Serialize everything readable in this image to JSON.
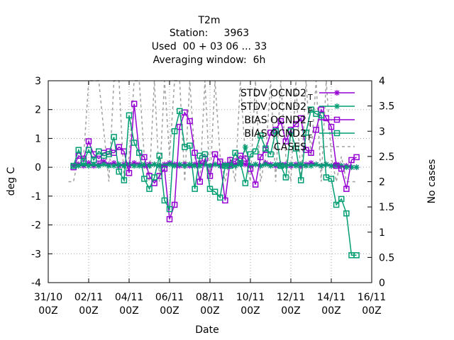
{
  "title_lines": [
    "T2m",
    "Station:     3963",
    "Used  00 + 03 06 ... 33",
    "Averaging window:  6h"
  ],
  "chart_data": {
    "type": "line",
    "xlabel": "Date",
    "ylabel": "deg C",
    "y2label": "No cases",
    "ylim": [
      -4,
      3
    ],
    "y2lim": [
      0,
      4
    ],
    "yticks": [
      -4,
      -3,
      -2,
      -1,
      0,
      1,
      2,
      3
    ],
    "y2ticks": [
      0,
      0.5,
      1,
      1.5,
      2,
      2.5,
      3,
      3.5,
      4
    ],
    "xlim": [
      0,
      16
    ],
    "xticks": [
      {
        "x": 0,
        "top": "31/10",
        "bottom": "00Z"
      },
      {
        "x": 2,
        "top": "02/11",
        "bottom": "00Z"
      },
      {
        "x": 4,
        "top": "04/11",
        "bottom": "00Z"
      },
      {
        "x": 6,
        "top": "06/11",
        "bottom": "00Z"
      },
      {
        "x": 8,
        "top": "08/11",
        "bottom": "00Z"
      },
      {
        "x": 10,
        "top": "10/11",
        "bottom": "00Z"
      },
      {
        "x": 12,
        "top": "12/11",
        "bottom": "00Z"
      },
      {
        "x": 14,
        "top": "14/11",
        "bottom": "00Z"
      },
      {
        "x": 16,
        "top": "16/11",
        "bottom": "00Z"
      }
    ],
    "grid": true,
    "legend_position": "top-right",
    "series": [
      {
        "name": "STDV OCND2_T",
        "legend_main": "STDV OCND2",
        "legend_sub": "T",
        "color": "#9400d3",
        "marker": "star",
        "axis": "y1",
        "x": [
          1.25,
          1.5,
          1.75,
          2,
          2.25,
          2.5,
          2.75,
          3,
          3.25,
          3.5,
          3.75,
          4,
          4.25,
          4.5,
          4.75,
          5,
          5.25,
          5.5,
          5.75,
          6,
          6.25,
          6.5,
          6.75,
          7,
          7.25,
          7.5,
          7.75,
          8,
          8.25,
          8.5,
          8.75,
          9,
          9.25,
          9.5,
          9.75,
          10,
          10.25,
          10.5,
          10.75,
          11,
          11.25,
          11.5,
          11.75,
          12,
          12.25,
          12.5,
          12.75,
          13,
          13.25,
          13.5,
          13.75,
          14,
          14.25,
          14.5,
          14.75,
          15,
          15.25
        ],
        "y": [
          0.05,
          0.1,
          0.05,
          0.15,
          0.05,
          0.1,
          0.2,
          0.1,
          0.15,
          0.05,
          0.1,
          0.05,
          0.15,
          0.1,
          0.05,
          0.1,
          0.1,
          0.05,
          0.1,
          0.15,
          0.1,
          0.05,
          0.1,
          0.05,
          0.1,
          0.15,
          0.1,
          0.05,
          0.1,
          0.05,
          0.1,
          0.05,
          0.1,
          0.15,
          0.1,
          0.05,
          0.1,
          0.05,
          0.15,
          0.1,
          0.05,
          0.1,
          0.1,
          0.05,
          0.1,
          0.05,
          0.1,
          0.15,
          0.1,
          0.05,
          0.1,
          0.05,
          0.1,
          0.05,
          0.05,
          0.0,
          0.0
        ]
      },
      {
        "name": "STDV OCND2_F",
        "legend_main": "STDV OCND2",
        "legend_sub": "F",
        "color": "#009e73",
        "marker": "star",
        "axis": "y1",
        "x": [
          1.25,
          1.5,
          1.75,
          2,
          2.25,
          2.5,
          2.75,
          3,
          3.25,
          3.5,
          3.75,
          4,
          4.25,
          4.5,
          4.75,
          5,
          5.25,
          5.5,
          5.75,
          6,
          6.25,
          6.5,
          6.75,
          7,
          7.25,
          7.5,
          7.75,
          8,
          8.25,
          8.5,
          8.75,
          9,
          9.25,
          9.5,
          9.75,
          10,
          10.25,
          10.5,
          10.75,
          11,
          11.25,
          11.5,
          11.75,
          12,
          12.25,
          12.5,
          12.75,
          13,
          13.25,
          13.5,
          13.75,
          14,
          14.25,
          14.5,
          14.75,
          15,
          15.25
        ],
        "y": [
          0.05,
          0.05,
          0.1,
          0.05,
          0.1,
          0.05,
          0.1,
          0.05,
          0.05,
          0.1,
          0.05,
          0.1,
          0.05,
          0.05,
          0.1,
          0.05,
          0.1,
          0.05,
          0.05,
          0.1,
          0.05,
          0.1,
          0.05,
          0.1,
          0.05,
          0.05,
          0.1,
          0.05,
          0.1,
          0.05,
          0.05,
          0.1,
          0.05,
          0.1,
          0.7,
          0.05,
          0.1,
          0.05,
          0.1,
          0.05,
          0.1,
          0.05,
          0.05,
          0.1,
          0.05,
          0.1,
          0.05,
          0.05,
          0.1,
          0.05,
          0.1,
          0.05,
          0.05,
          0.05,
          0.0,
          0.0,
          0.0
        ]
      },
      {
        "name": "BIAS OCND2_T",
        "legend_main": "BIAS OCND2",
        "legend_sub": "T",
        "color": "#9400d3",
        "marker": "square",
        "axis": "y1",
        "x": [
          1.25,
          1.5,
          1.75,
          2,
          2.25,
          2.5,
          2.75,
          3,
          3.25,
          3.5,
          3.75,
          4,
          4.25,
          4.5,
          4.75,
          5,
          5.25,
          5.5,
          5.75,
          6,
          6.25,
          6.5,
          6.75,
          7,
          7.25,
          7.5,
          7.75,
          8,
          8.25,
          8.5,
          8.75,
          9,
          9.25,
          9.5,
          9.75,
          10,
          10.25,
          10.5,
          10.75,
          11,
          11.25,
          11.5,
          11.75,
          12,
          12.25,
          12.5,
          12.75,
          13,
          13.25,
          13.5,
          13.75,
          14,
          14.25,
          14.5,
          14.75,
          15,
          15.25
        ],
        "y": [
          0.0,
          0.4,
          0.3,
          0.9,
          0.45,
          0.3,
          0.5,
          0.55,
          0.5,
          0.7,
          0.55,
          -0.2,
          2.2,
          0.5,
          0.35,
          -0.3,
          -0.55,
          -0.3,
          -0.05,
          -1.8,
          -1.3,
          1.4,
          1.9,
          1.6,
          0.5,
          -0.5,
          0.3,
          -0.3,
          0.45,
          0.2,
          -1.15,
          0.25,
          0.2,
          0.4,
          0.3,
          -0.05,
          -0.6,
          0.35,
          0.6,
          1.2,
          1.3,
          1.6,
          0.9,
          1.3,
          1.5,
          1.7,
          0.6,
          0.5,
          1.3,
          2.0,
          1.7,
          1.4,
          0.05,
          -0.05,
          -0.75,
          0.25,
          0.35
        ]
      },
      {
        "name": "BIAS OCND2_F",
        "legend_main": "BIAS OCND2",
        "legend_sub": "F",
        "color": "#009e73",
        "marker": "square",
        "axis": "y1",
        "x": [
          1.25,
          1.5,
          1.75,
          2,
          2.25,
          2.5,
          2.75,
          3,
          3.25,
          3.5,
          3.75,
          4,
          4.25,
          4.5,
          4.75,
          5,
          5.25,
          5.5,
          5.75,
          6,
          6.25,
          6.5,
          6.75,
          7,
          7.25,
          7.5,
          7.75,
          8,
          8.25,
          8.5,
          8.75,
          9,
          9.25,
          9.5,
          9.75,
          10,
          10.25,
          10.5,
          10.75,
          11,
          11.25,
          11.5,
          11.75,
          12,
          12.25,
          12.5,
          12.75,
          13,
          13.25,
          13.5,
          13.75,
          14,
          14.25,
          14.5,
          14.75,
          15,
          15.25
        ],
        "y": [
          0.05,
          0.6,
          0.2,
          0.6,
          0.25,
          0.55,
          0.4,
          0.45,
          1.05,
          -0.15,
          -0.45,
          1.8,
          0.85,
          0.5,
          -0.4,
          -0.75,
          -0.35,
          0.4,
          -1.15,
          -1.45,
          1.25,
          1.95,
          0.7,
          0.75,
          -0.75,
          0.4,
          0.45,
          -0.75,
          -0.85,
          -1.05,
          0.05,
          0.05,
          0.5,
          0.15,
          -0.55,
          0.45,
          0.55,
          1.1,
          0.65,
          0.45,
          1.25,
          0.05,
          -0.35,
          1.25,
          0.65,
          -0.45,
          1.2,
          2.0,
          1.85,
          1.8,
          -0.35,
          -0.4,
          -1.3,
          -1.1,
          -1.6,
          -3.05,
          -3.05
        ]
      },
      {
        "name": "CASES",
        "legend_main": "CASES",
        "legend_sub": "",
        "color": "#a0a0a0",
        "marker": "none",
        "dashed": true,
        "axis": "y2",
        "x": [
          1.0,
          1.25,
          1.5,
          1.75,
          2.0,
          2.25,
          2.5,
          2.75,
          3.0,
          3.25,
          3.5,
          3.75,
          4.0,
          4.25,
          4.5,
          4.75,
          5.0,
          5.25,
          5.5,
          5.75,
          6.0,
          6.25,
          6.5,
          6.75,
          7.0,
          7.25,
          7.5,
          7.75,
          8.0,
          8.25,
          8.5,
          8.75,
          9.0,
          9.25,
          9.5,
          9.75,
          10.0,
          10.25,
          10.5,
          10.75,
          11.0,
          11.25,
          11.5,
          11.75,
          12.0,
          12.25,
          12.5,
          12.75,
          13.0,
          13.25,
          13.5,
          13.75,
          14.0,
          14.25,
          14.5,
          14.75,
          15.0,
          15.25
        ],
        "y": [
          2.0,
          2.0,
          2.5,
          2.5,
          4.0,
          4.0,
          4.0,
          3.0,
          2.0,
          4.0,
          4.0,
          2.0,
          2.5,
          4.0,
          4.0,
          2.5,
          2.0,
          4.0,
          2.0,
          4.0,
          2.5,
          4.0,
          4.0,
          2.0,
          4.0,
          2.5,
          2.0,
          4.0,
          2.0,
          4.0,
          2.5,
          2.0,
          2.5,
          2.0,
          4.0,
          2.5,
          2.0,
          4.0,
          2.0,
          2.5,
          4.0,
          2.0,
          4.0,
          2.5,
          2.0,
          4.0,
          2.0,
          4.0,
          2.5,
          4.0,
          2.0,
          4.0,
          2.5,
          2.0,
          2.5,
          2.0,
          2.0,
          2.0
        ]
      }
    ]
  }
}
